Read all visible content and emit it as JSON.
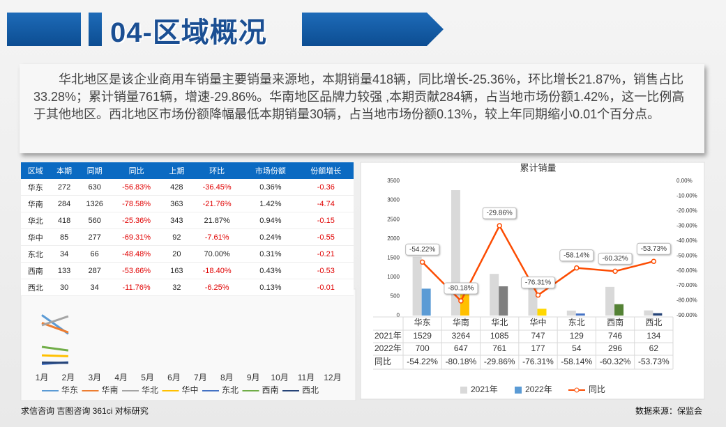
{
  "header": {
    "title": "04-区域概况"
  },
  "summary": "华北地区是该企业商用车销量主要销量来源地，本期销量418辆，同比增长-25.36%，环比增长21.87%，销售占比33.28%；累计销量761辆，增速-29.86%。华南地区品牌力较强 ,本期贡献284辆，占当地市场份额1.42%，这一比例高于其他地区。西北地区市场份额降幅最低本期销量30辆，占当地市场份额0.13%，较上年同期缩小0.01个百分点。",
  "table": {
    "columns": [
      "区域",
      "本期",
      "同期",
      "同比",
      "上期",
      "环比",
      "市场份额",
      "份额增长"
    ],
    "rows": [
      [
        "华东",
        272,
        630,
        "-56.83%",
        428,
        "-36.45%",
        "0.36%",
        -0.36
      ],
      [
        "华南",
        284,
        1326,
        "-78.58%",
        363,
        "-21.76%",
        "1.42%",
        -4.74
      ],
      [
        "华北",
        418,
        560,
        "-25.36%",
        343,
        "21.87%",
        "0.94%",
        -0.15
      ],
      [
        "华中",
        85,
        277,
        "-69.31%",
        92,
        "-7.61%",
        "0.24%",
        -0.55
      ],
      [
        "东北",
        34,
        66,
        "-48.48%",
        20,
        "70.00%",
        "0.31%",
        -0.21
      ],
      [
        "西南",
        133,
        287,
        "-53.66%",
        163,
        "-18.40%",
        "0.43%",
        -0.53
      ],
      [
        "西北",
        30,
        34,
        "-11.76%",
        32,
        "-6.25%",
        "0.13%",
        -0.01
      ]
    ]
  },
  "chart_data": [
    {
      "type": "line",
      "categories": [
        "1月",
        "2月",
        "3月",
        "4月",
        "5月",
        "6月",
        "7月",
        "8月",
        "9月",
        "10月",
        "11月",
        "12月"
      ],
      "ylim": [
        0,
        500
      ],
      "series": [
        {
          "name": "华东",
          "color": "#5b9bd5",
          "values": [
            428,
            272,
            null,
            null,
            null,
            null,
            null,
            null,
            null,
            null,
            null,
            null
          ]
        },
        {
          "name": "华南",
          "color": "#ed7d31",
          "values": [
            363,
            284,
            null,
            null,
            null,
            null,
            null,
            null,
            null,
            null,
            null,
            null
          ]
        },
        {
          "name": "华北",
          "color": "#a5a5a5",
          "values": [
            343,
            418,
            null,
            null,
            null,
            null,
            null,
            null,
            null,
            null,
            null,
            null
          ]
        },
        {
          "name": "华中",
          "color": "#ffc000",
          "values": [
            92,
            85,
            null,
            null,
            null,
            null,
            null,
            null,
            null,
            null,
            null,
            null
          ]
        },
        {
          "name": "东北",
          "color": "#4472c4",
          "values": [
            20,
            34,
            null,
            null,
            null,
            null,
            null,
            null,
            null,
            null,
            null,
            null
          ]
        },
        {
          "name": "西南",
          "color": "#70ad47",
          "values": [
            163,
            133,
            null,
            null,
            null,
            null,
            null,
            null,
            null,
            null,
            null,
            null
          ]
        },
        {
          "name": "西北",
          "color": "#264478",
          "values": [
            32,
            30,
            null,
            null,
            null,
            null,
            null,
            null,
            null,
            null,
            null,
            null
          ]
        }
      ]
    },
    {
      "type": "bar",
      "title": "累计销量",
      "categories": [
        "华东",
        "华南",
        "华北",
        "华中",
        "东北",
        "西南",
        "西北"
      ],
      "ylim": [
        0,
        3500
      ],
      "yticks": [
        0,
        500,
        1000,
        1500,
        2000,
        2500,
        3000,
        3500
      ],
      "y2lim": [
        -90,
        0
      ],
      "y2ticks": [
        {
          "value": 0,
          "label": "0.00%"
        },
        {
          "value": -10,
          "label": "-10.00%"
        },
        {
          "value": -20,
          "label": "-20.00%"
        },
        {
          "value": -30,
          "label": "-30.00%"
        },
        {
          "value": -40,
          "label": "-40.00%"
        },
        {
          "value": -50,
          "label": "-50.00%"
        },
        {
          "value": -60,
          "label": "-60.00%"
        },
        {
          "value": -70,
          "label": "-70.00%"
        },
        {
          "value": -80,
          "label": "-80.00%"
        },
        {
          "value": -90,
          "label": "-90.00%"
        }
      ],
      "series": [
        {
          "name": "2021年",
          "color": "#d9d9d9",
          "values": [
            1529,
            3264,
            1085,
            747,
            129,
            746,
            134
          ]
        },
        {
          "name": "2022年",
          "color": "#5b9bd5",
          "colors": [
            "#5b9bd5",
            "#ffc000",
            "#7f7f7f",
            "#ffd700",
            "#4472c4",
            "#548235",
            "#264478"
          ],
          "values": [
            700,
            647,
            761,
            177,
            54,
            296,
            62
          ]
        },
        {
          "name": "同比",
          "type": "line",
          "axis": "y2",
          "color": "#fc4c02",
          "values": [
            -54.22,
            -80.18,
            -29.86,
            -76.31,
            -58.14,
            -60.32,
            -53.73
          ],
          "value_labels": [
            "-54.22%",
            "-80.18%",
            "-29.86%",
            "-76.31%",
            "-58.14%",
            "-60.32%",
            "-53.73%"
          ]
        }
      ]
    }
  ],
  "footer": {
    "left": "求信咨询 吉图咨询 361ci 对标研究",
    "right": "数据来源：保监会"
  }
}
